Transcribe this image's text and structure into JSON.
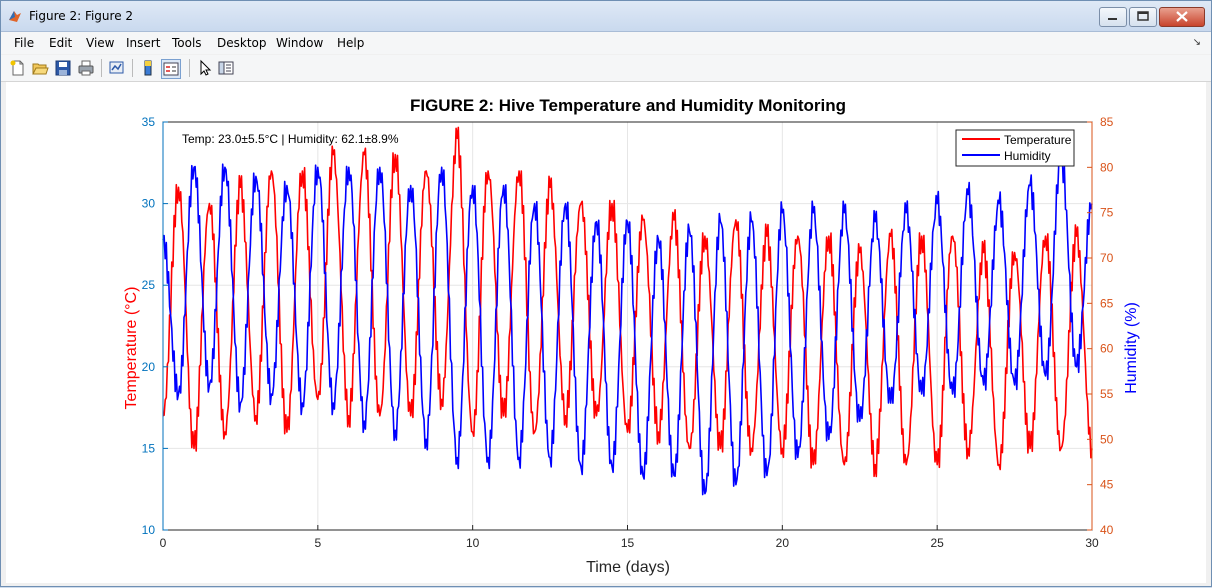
{
  "window": {
    "title": "Figure 2: Figure 2"
  },
  "menu": [
    "File",
    "Edit",
    "View",
    "Insert",
    "Tools",
    "Desktop",
    "Window",
    "Help"
  ],
  "menu_overflow_glyph": "↘",
  "toolbar_icons": [
    "new-figure-icon",
    "open-file-icon",
    "save-icon",
    "print-icon",
    "link-plot-icon",
    "insert-colorbar-icon",
    "insert-legend-icon",
    "edit-plot-icon",
    "property-inspector-icon"
  ],
  "colors": {
    "temperature": "#ff0000",
    "humidity": "#0000ff",
    "left_axis": "#0072bd",
    "right_axis": "#d95319",
    "grid": "#e6e6e6"
  },
  "chart_data": {
    "type": "line",
    "title": "FIGURE 2: Hive Temperature and Humidity Monitoring",
    "xlabel": "Time (days)",
    "ylabel": "Temperature (°C)",
    "ylabel_right": "Humidity (%)",
    "xlim": [
      0,
      30
    ],
    "ylim": [
      10,
      35
    ],
    "ylim_right": [
      40,
      85
    ],
    "xticks": [
      0,
      5,
      10,
      15,
      20,
      25,
      30
    ],
    "yticks": [
      10,
      15,
      20,
      25,
      30,
      35
    ],
    "yticks_right": [
      40,
      45,
      50,
      55,
      60,
      65,
      70,
      75,
      80,
      85
    ],
    "grid": true,
    "legend_position": "top-right",
    "annotation": "Temp: 23.0±5.5°C | Humidity: 62.1±8.9%",
    "series": [
      {
        "name": "Temperature",
        "axis": "left",
        "color": "#ff0000",
        "x": [
          0,
          0.5,
          1,
          1.5,
          2,
          2.5,
          3,
          3.5,
          4,
          4.5,
          5,
          5.5,
          6,
          6.5,
          7,
          7.5,
          8,
          8.5,
          9,
          9.5,
          10,
          10.5,
          11,
          11.5,
          12,
          12.5,
          13,
          13.5,
          14,
          14.5,
          15,
          15.5,
          16,
          16.5,
          17,
          17.5,
          18,
          18.5,
          19,
          19.5,
          20,
          20.5,
          21,
          21.5,
          22,
          22.5,
          23,
          23.5,
          24,
          24.5,
          25,
          25.5,
          26,
          26.5,
          27,
          27.5,
          28,
          28.5,
          29,
          29.5,
          30
        ],
        "values": [
          17,
          31,
          15,
          30,
          16,
          31,
          17,
          32,
          16,
          32,
          18,
          33,
          17,
          33,
          17,
          33,
          17,
          32,
          18,
          34,
          16,
          32,
          17,
          32,
          16,
          31,
          17,
          30,
          17,
          30,
          16,
          29,
          16,
          29,
          15,
          28,
          15,
          29,
          15,
          28,
          15,
          28,
          14,
          28,
          14,
          27,
          14,
          28,
          14,
          28,
          14,
          28,
          15,
          27,
          14,
          27,
          15,
          28,
          15,
          28,
          15
        ]
      },
      {
        "name": "Humidity",
        "axis": "right",
        "color": "#0000ff",
        "x": [
          0,
          0.5,
          1,
          1.5,
          2,
          2.5,
          3,
          3.5,
          4,
          4.5,
          5,
          5.5,
          6,
          6.5,
          7,
          7.5,
          8,
          8.5,
          9,
          9.5,
          10,
          10.5,
          11,
          11.5,
          12,
          12.5,
          13,
          13.5,
          14,
          14.5,
          15,
          15.5,
          16,
          16.5,
          17,
          17.5,
          18,
          18.5,
          19,
          19.5,
          20,
          20.5,
          21,
          21.5,
          22,
          22.5,
          23,
          23.5,
          24,
          24.5,
          25,
          25.5,
          26,
          26.5,
          27,
          27.5,
          28,
          28.5,
          29,
          29.5,
          30
        ],
        "values": [
          72,
          55,
          80,
          56,
          80,
          54,
          79,
          55,
          78,
          54,
          80,
          54,
          80,
          52,
          80,
          51,
          78,
          50,
          80,
          48,
          78,
          48,
          78,
          48,
          76,
          48,
          76,
          47,
          74,
          47,
          74,
          46,
          72,
          46,
          73,
          44,
          74,
          45,
          74,
          46,
          75,
          48,
          75,
          50,
          75,
          52,
          74,
          54,
          75,
          55,
          76,
          55,
          77,
          56,
          76,
          56,
          78,
          57,
          81,
          58,
          76
        ]
      }
    ]
  }
}
